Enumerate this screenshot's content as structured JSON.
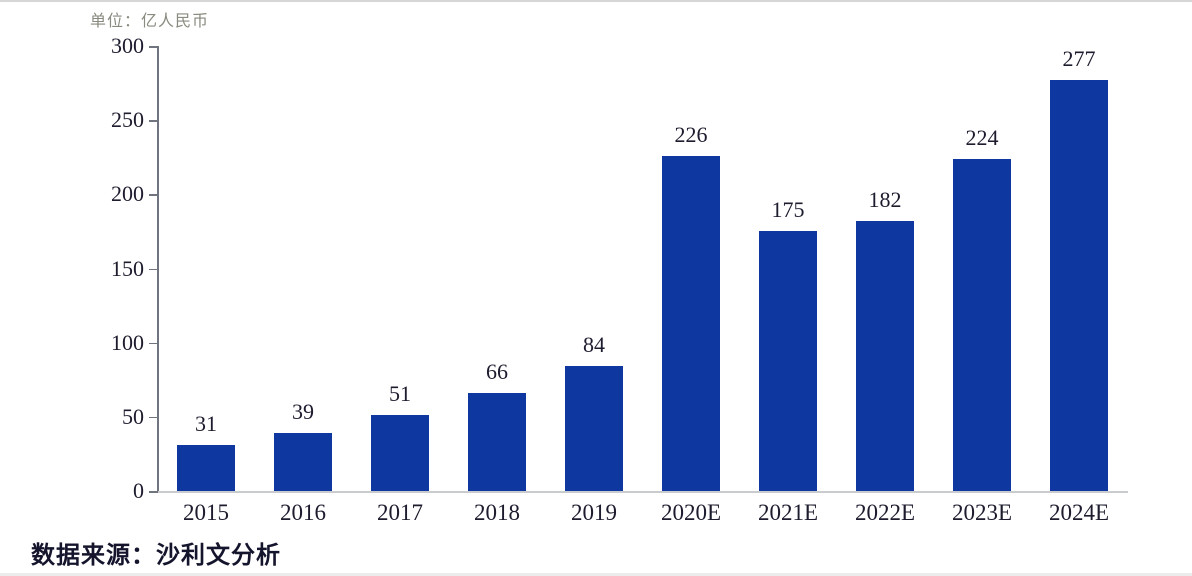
{
  "header": {
    "unit_label": "单位：亿人民币"
  },
  "footer": {
    "source_label": "数据来源：沙利文分析"
  },
  "colors": {
    "bar": "#0e37a0",
    "label_text": "#1c1c2e",
    "unit_text": "#8a8a80",
    "axis_line": "#70747e",
    "baseline": "#c9cbcf"
  },
  "chart_data": {
    "type": "bar",
    "title": "",
    "unit_note": "单位：亿人民币",
    "categories": [
      "2015",
      "2016",
      "2017",
      "2018",
      "2019",
      "2020E",
      "2021E",
      "2022E",
      "2023E",
      "2024E"
    ],
    "values": [
      31,
      39,
      51,
      66,
      84,
      226,
      175,
      182,
      224,
      277
    ],
    "value_labels_shown": true,
    "xlabel": "",
    "ylabel": "",
    "ylim": [
      0,
      300
    ],
    "yticks": [
      0,
      50,
      100,
      150,
      200,
      250,
      300
    ],
    "grid": false,
    "legend_position": "none",
    "source_note": "数据来源：沙利文分析"
  }
}
